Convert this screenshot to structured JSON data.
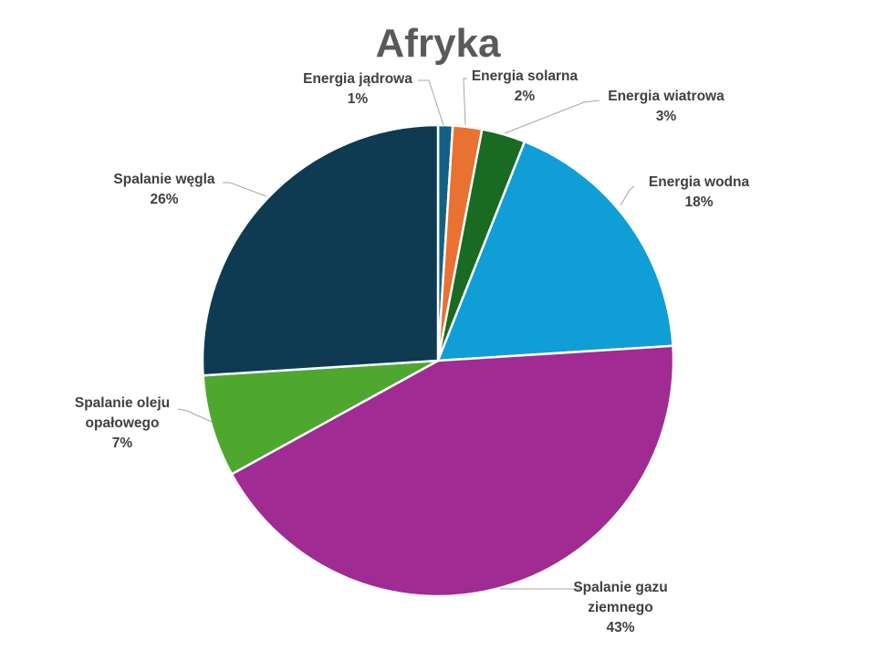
{
  "chart_data": {
    "type": "pie",
    "title": "Afryka",
    "slices": [
      {
        "label": [
          "Energia jądrowa"
        ],
        "value": 1,
        "pct_label": "1%",
        "color": "#156082"
      },
      {
        "label": [
          "Energia solarna"
        ],
        "value": 2,
        "pct_label": "2%",
        "color": "#E97132"
      },
      {
        "label": [
          "Energia wiatrowa"
        ],
        "value": 3,
        "pct_label": "3%",
        "color": "#196B24"
      },
      {
        "label": [
          "Energia wodna"
        ],
        "value": 18,
        "pct_label": "18%",
        "color": "#0F9ED5"
      },
      {
        "label": [
          "Spalanie gazu",
          "ziemnego"
        ],
        "value": 43,
        "pct_label": "43%",
        "color": "#A02B93"
      },
      {
        "label": [
          "Spalanie oleju",
          "opałowego"
        ],
        "value": 7,
        "pct_label": "7%",
        "color": "#4EA72E"
      },
      {
        "label": [
          "Spalanie węgla"
        ],
        "value": 26,
        "pct_label": "26%",
        "color": "#0E3A52"
      }
    ],
    "legend": "none"
  }
}
